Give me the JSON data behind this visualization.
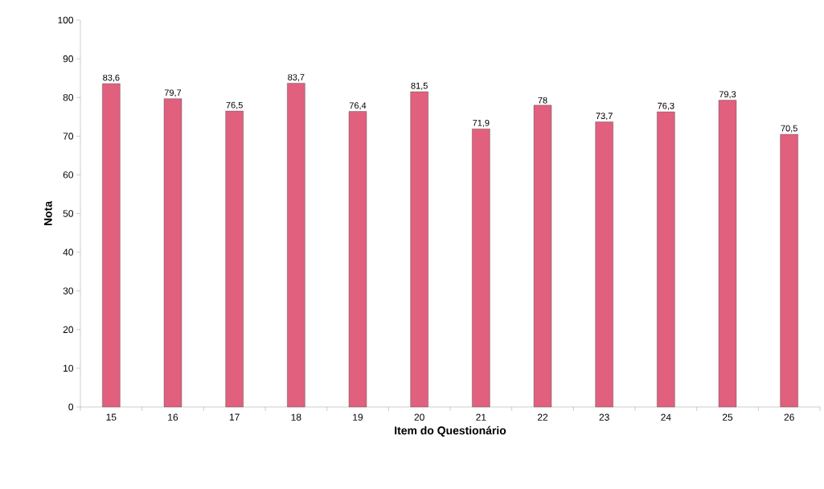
{
  "chart_data": {
    "type": "bar",
    "xlabel": "Item do Questionário",
    "ylabel": "Nota",
    "categories": [
      "15",
      "16",
      "17",
      "18",
      "19",
      "20",
      "21",
      "22",
      "23",
      "24",
      "25",
      "26"
    ],
    "values": [
      83.6,
      79.7,
      76.5,
      83.7,
      76.4,
      81.5,
      71.9,
      78,
      73.7,
      76.3,
      79.3,
      70.5
    ],
    "value_labels": [
      "83,6",
      "79,7",
      "76,5",
      "83,7",
      "76,4",
      "81,5",
      "71,9",
      "78",
      "73,7",
      "76,3",
      "79,3",
      "70,5"
    ],
    "color": "#e0607e",
    "ylim": [
      0,
      100
    ],
    "yticks": [
      0,
      10,
      20,
      30,
      40,
      50,
      60,
      70,
      80,
      90,
      100
    ],
    "grid": false
  }
}
